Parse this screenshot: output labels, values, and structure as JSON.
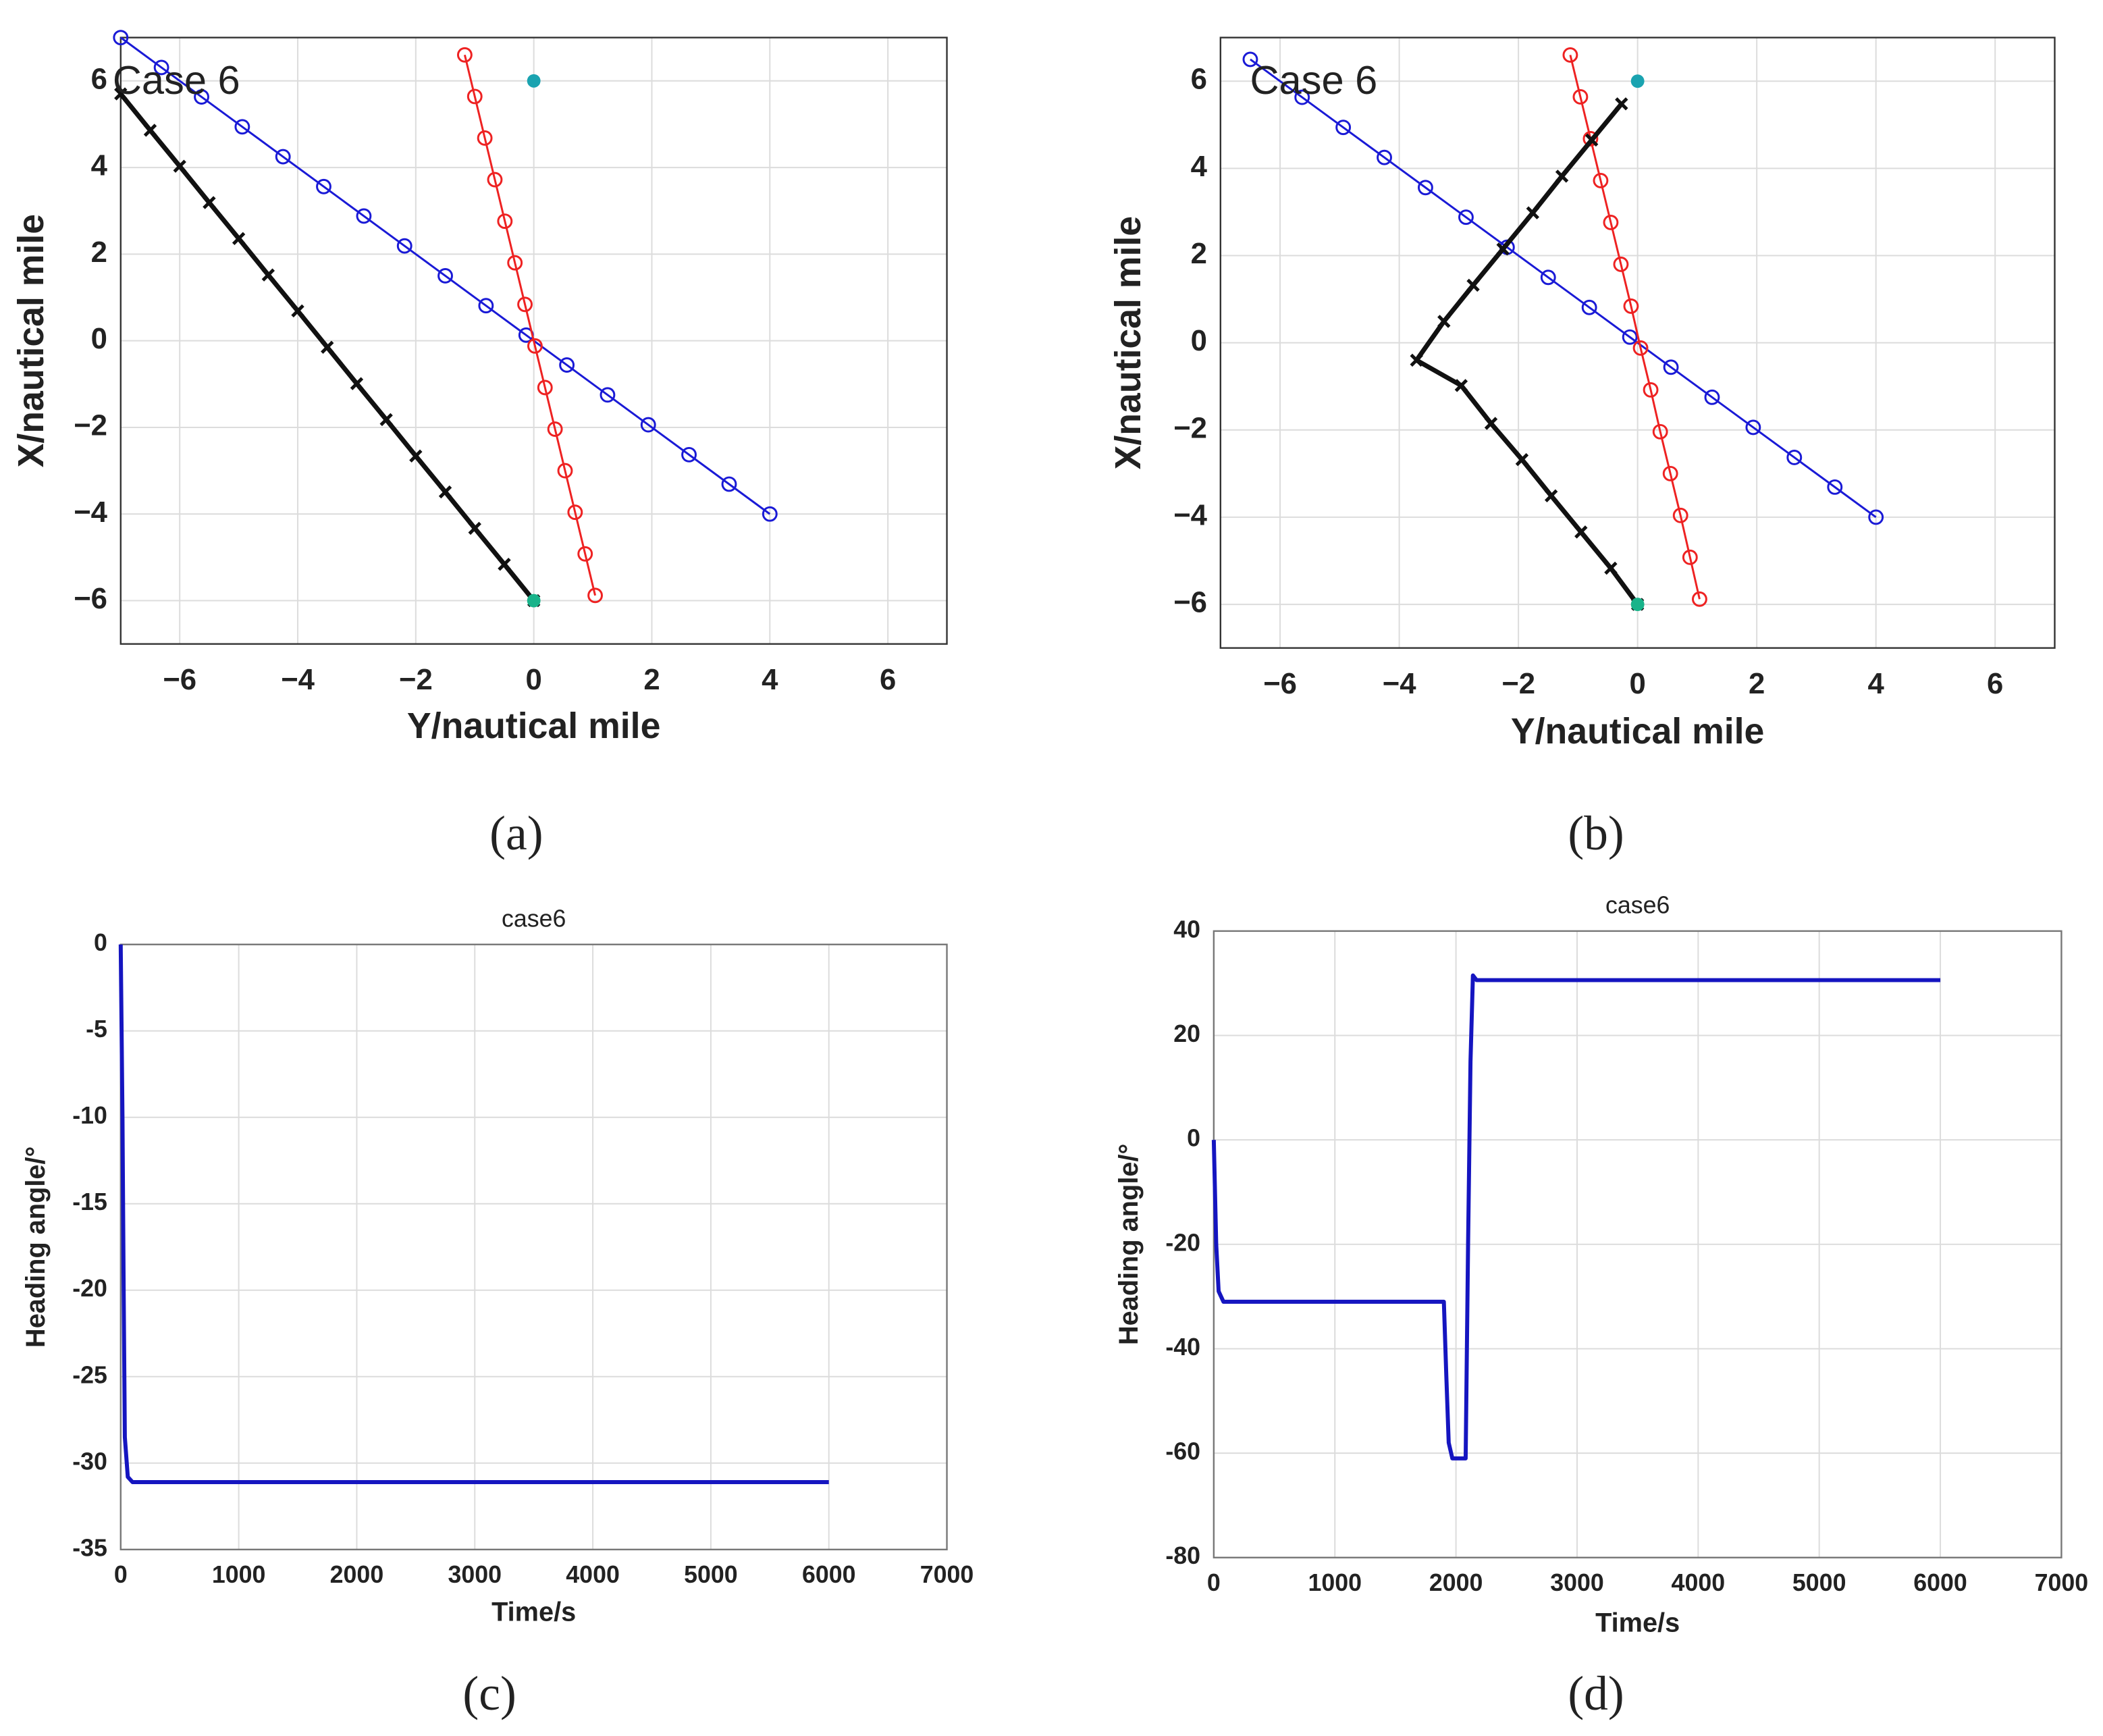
{
  "chart_data": [
    {
      "type": "line",
      "caption": "(a)",
      "annotation": "Case 6",
      "x_label": "Y/nautical mile",
      "y_label": "X/nautical mile",
      "xlim": [
        -7,
        7
      ],
      "ylim": [
        -7,
        7
      ],
      "grid": true,
      "xticks": [
        {
          "value": -6,
          "label": "−6"
        },
        {
          "value": -4,
          "label": "−4"
        },
        {
          "value": -2,
          "label": "−2"
        },
        0,
        2,
        4,
        6
      ],
      "yticks": [
        {
          "value": -6,
          "label": "−6"
        },
        {
          "value": -4,
          "label": "−4"
        },
        {
          "value": -2,
          "label": "−2"
        },
        0,
        2,
        4,
        6
      ],
      "series": [
        {
          "color": "#1a1ad6",
          "marker": "o",
          "x": [
            -7,
            -6.31,
            -5.63,
            -4.94,
            -4.25,
            -3.56,
            -2.88,
            -2.19,
            -1.5,
            -0.81,
            -0.13,
            0.56,
            1.25,
            1.94,
            2.63,
            3.31,
            4
          ],
          "values": [
            7,
            6.31,
            5.63,
            4.94,
            4.25,
            3.56,
            2.88,
            2.19,
            1.5,
            0.81,
            0.13,
            -0.56,
            -1.25,
            -1.94,
            -2.63,
            -3.31,
            -4
          ]
        },
        {
          "color": "#ee2222",
          "marker": "o",
          "x": [
            -1.17,
            -1.0,
            -0.83,
            -0.66,
            -0.49,
            -0.32,
            -0.15,
            0.02,
            0.19,
            0.36,
            0.53,
            0.7,
            0.87,
            1.04
          ],
          "values": [
            6.6,
            5.64,
            4.68,
            3.72,
            2.76,
            1.8,
            0.84,
            -0.12,
            -1.08,
            -2.04,
            -3.0,
            -3.96,
            -4.92,
            -5.88
          ]
        },
        {
          "color": "#111111",
          "marker": "x",
          "x": [
            -7,
            -6.5,
            -6,
            -5.5,
            -5,
            -4.5,
            -4,
            -3.5,
            -3,
            -2.5,
            -2,
            -1.5,
            -1,
            -0.5,
            0
          ],
          "values": [
            5.7,
            4.86,
            4.03,
            3.19,
            2.36,
            1.52,
            0.69,
            -0.15,
            -0.99,
            -1.82,
            -2.66,
            -3.49,
            -4.33,
            -5.16,
            -6
          ]
        },
        {
          "color": "#1aa3b0",
          "marker": "dot",
          "x": [
            0
          ],
          "values": [
            6
          ]
        },
        {
          "color": "#19b38a",
          "marker": "dot",
          "x": [
            0
          ],
          "values": [
            -6
          ]
        }
      ]
    },
    {
      "type": "line",
      "caption": "(b)",
      "annotation": "Case 6",
      "x_label": "Y/nautical mile",
      "y_label": "X/nautical mile",
      "xlim": [
        -7,
        7
      ],
      "ylim": [
        -7,
        7
      ],
      "grid": true,
      "xticks": [
        {
          "value": -6,
          "label": "−6"
        },
        {
          "value": -4,
          "label": "−4"
        },
        {
          "value": -2,
          "label": "−2"
        },
        0,
        2,
        4,
        6
      ],
      "yticks": [
        {
          "value": -6,
          "label": "−6"
        },
        {
          "value": -4,
          "label": "−4"
        },
        {
          "value": -2,
          "label": "−2"
        },
        0,
        2,
        4,
        6
      ],
      "series": [
        {
          "color": "#1a1ad6",
          "marker": "o",
          "x": [
            -6.5,
            -5.63,
            -4.94,
            -4.25,
            -3.56,
            -2.88,
            -2.19,
            -1.5,
            -0.81,
            -0.13,
            0.56,
            1.25,
            1.94,
            2.63,
            3.31,
            4
          ],
          "values": [
            6.5,
            5.63,
            4.94,
            4.25,
            3.56,
            2.88,
            2.19,
            1.5,
            0.81,
            0.13,
            -0.56,
            -1.25,
            -1.94,
            -2.63,
            -3.31,
            -4
          ]
        },
        {
          "color": "#ee2222",
          "marker": "o",
          "x": [
            -1.13,
            -0.96,
            -0.79,
            -0.62,
            -0.45,
            -0.28,
            -0.11,
            0.05,
            0.22,
            0.38,
            0.55,
            0.72,
            0.88,
            1.04
          ],
          "values": [
            6.6,
            5.64,
            4.68,
            3.72,
            2.76,
            1.8,
            0.84,
            -0.12,
            -1.08,
            -2.04,
            -3.0,
            -3.96,
            -4.92,
            -5.88
          ]
        },
        {
          "color": "#111111",
          "marker": "x",
          "x": [
            0,
            -0.45,
            -0.95,
            -1.45,
            -1.94,
            -2.46,
            -2.96,
            -3.71,
            -3.25,
            -2.76,
            -2.26,
            -1.76,
            -1.27,
            -0.77,
            -0.27
          ],
          "values": [
            -6,
            -5.17,
            -4.34,
            -3.51,
            -2.68,
            -1.85,
            -0.98,
            -0.4,
            0.49,
            1.32,
            2.15,
            2.98,
            3.82,
            4.65,
            5.48
          ]
        },
        {
          "color": "#1aa3b0",
          "marker": "dot",
          "x": [
            0
          ],
          "values": [
            6
          ]
        },
        {
          "color": "#19b38a",
          "marker": "dot",
          "x": [
            0
          ],
          "values": [
            -6
          ]
        }
      ]
    },
    {
      "type": "line",
      "caption": "(c)",
      "title": "case6",
      "x_label": "Time/s",
      "y_label": "Heading angle/°",
      "xlim": [
        0,
        7000
      ],
      "ylim": [
        -35,
        0
      ],
      "grid": true,
      "xticks": [
        0,
        1000,
        2000,
        3000,
        4000,
        5000,
        6000,
        7000
      ],
      "yticks": [
        -35,
        -30,
        -25,
        -20,
        -15,
        -10,
        -5,
        0
      ],
      "series": [
        {
          "color": "#1515c0",
          "marker": "none",
          "x": [
            0,
            15,
            25,
            35,
            60,
            100,
            6000
          ],
          "values": [
            0,
            -10,
            -20,
            -28.5,
            -30.8,
            -31.1,
            -31.1
          ]
        }
      ]
    },
    {
      "type": "line",
      "caption": "(d)",
      "title": "case6",
      "x_label": "Time/s",
      "y_label": "Heading angle/°",
      "xlim": [
        0,
        7000
      ],
      "ylim": [
        -80,
        40
      ],
      "grid": true,
      "xticks": [
        0,
        1000,
        2000,
        3000,
        4000,
        5000,
        6000,
        7000
      ],
      "yticks": [
        -80,
        -60,
        -40,
        -20,
        0,
        20,
        40
      ],
      "series": [
        {
          "color": "#1515c0",
          "marker": "none",
          "x": [
            0,
            20,
            40,
            80,
            1900,
            1920,
            1940,
            1970,
            2080,
            2100,
            2120,
            2140,
            2170,
            6000
          ],
          "values": [
            0,
            -20,
            -29,
            -31,
            -31,
            -45,
            -58,
            -61,
            -61,
            -20,
            15,
            31.5,
            30.6,
            30.6
          ]
        }
      ]
    }
  ]
}
